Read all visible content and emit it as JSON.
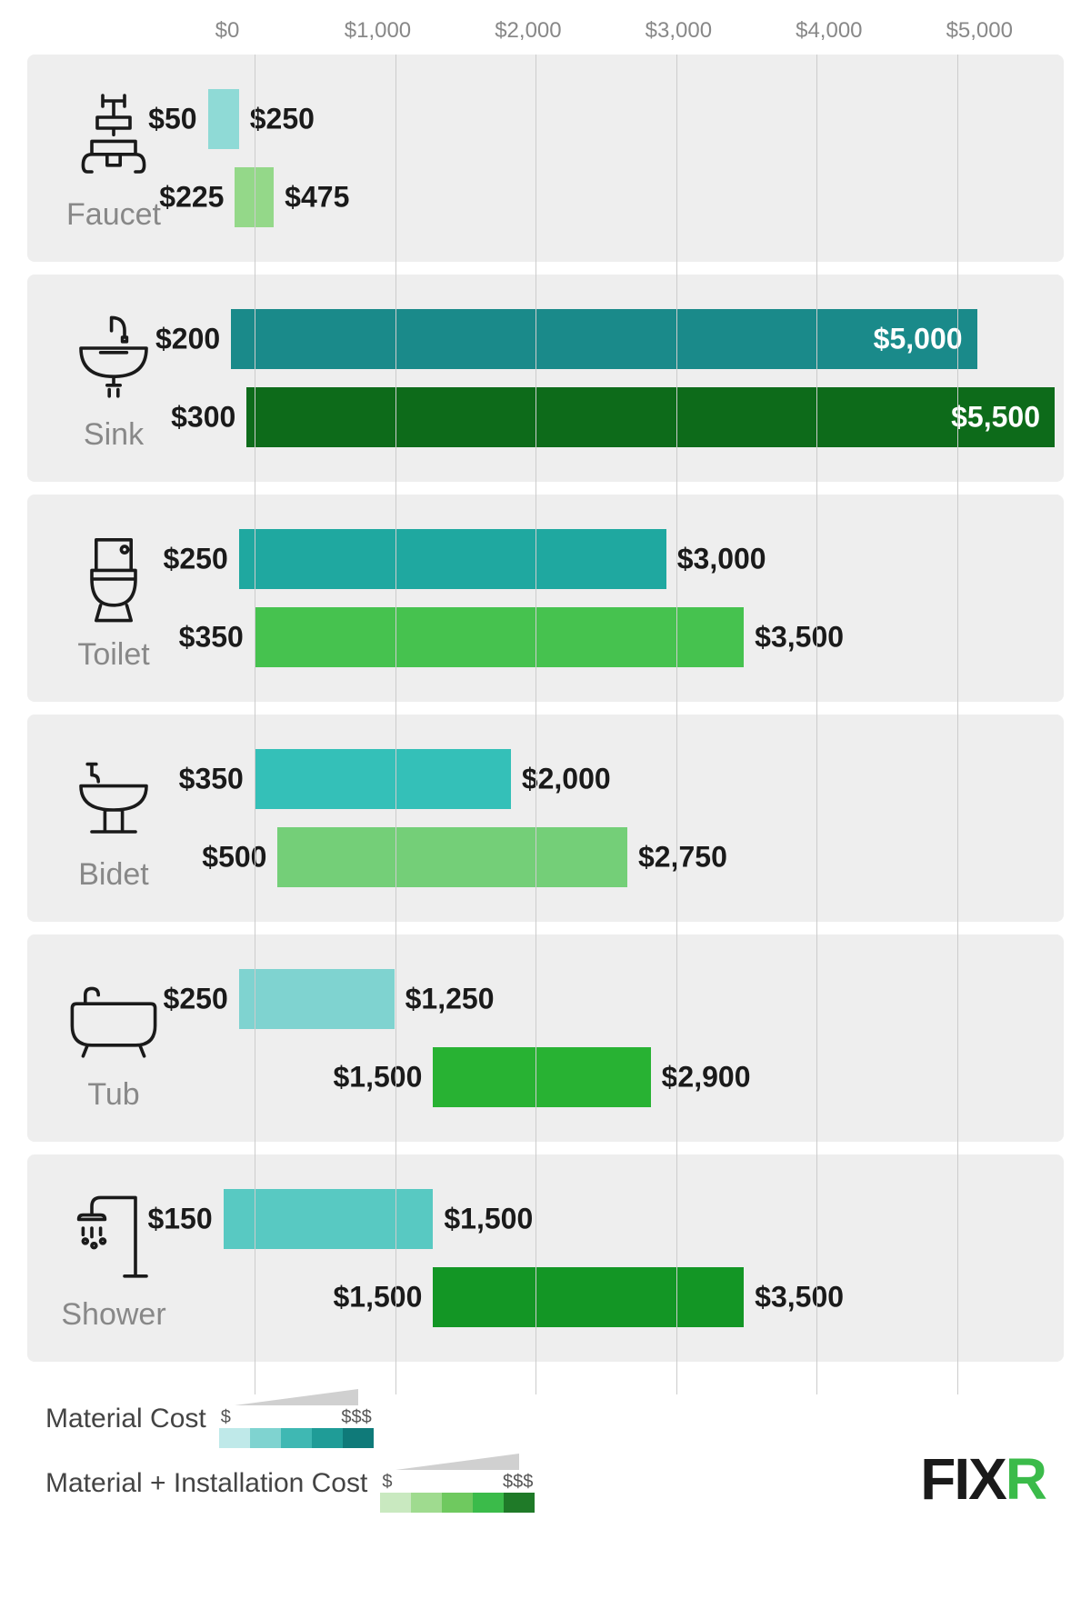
{
  "axis": {
    "min": 0,
    "max": 5500,
    "ticks": [
      0,
      1000,
      2000,
      3000,
      4000,
      5000
    ],
    "tick_labels": [
      "$0",
      "$1,000",
      "$2,000",
      "$3,000",
      "$4,000",
      "$5,000"
    ],
    "label_color": "#888888",
    "gridline_color": "#cccccc"
  },
  "colors": {
    "material_scale": [
      "#bfe9e9",
      "#7fd3d0",
      "#3fb8b3",
      "#1f9c97",
      "#0f7a79"
    ],
    "install_scale": [
      "#c9e9c0",
      "#9fdb8f",
      "#6fc95f",
      "#3bbb4a",
      "#1f7a28"
    ],
    "category_bg": "#eeeeee",
    "page_bg": "#ffffff",
    "text_dark": "#1a1a1a",
    "text_muted": "#888888"
  },
  "categories": [
    {
      "key": "faucet",
      "label": "Faucet",
      "icon": "faucet",
      "material": {
        "low": 50,
        "high": 250,
        "low_label": "$50",
        "high_label": "$250",
        "color": "#8fdad6",
        "high_inside": false
      },
      "install": {
        "low": 225,
        "high": 475,
        "low_label": "$225",
        "high_label": "$475",
        "color": "#94d889",
        "high_inside": false
      }
    },
    {
      "key": "sink",
      "label": "Sink",
      "icon": "sink",
      "material": {
        "low": 200,
        "high": 5000,
        "low_label": "$200",
        "high_label": "$5,000",
        "color": "#1a8a8a",
        "high_inside": true
      },
      "install": {
        "low": 300,
        "high": 5500,
        "low_label": "$300",
        "high_label": "$5,500",
        "color": "#0d6b1a",
        "high_inside": true
      }
    },
    {
      "key": "toilet",
      "label": "Toilet",
      "icon": "toilet",
      "material": {
        "low": 250,
        "high": 3000,
        "low_label": "$250",
        "high_label": "$3,000",
        "color": "#1fa8a0",
        "high_inside": false
      },
      "install": {
        "low": 350,
        "high": 3500,
        "low_label": "$350",
        "high_label": "$3,500",
        "color": "#46c24f",
        "high_inside": false
      }
    },
    {
      "key": "bidet",
      "label": "Bidet",
      "icon": "bidet",
      "material": {
        "low": 350,
        "high": 2000,
        "low_label": "$350",
        "high_label": "$2,000",
        "color": "#34c0b8",
        "high_inside": false
      },
      "install": {
        "low": 500,
        "high": 2750,
        "low_label": "$500",
        "high_label": "$2,750",
        "color": "#74cf78",
        "high_inside": false
      }
    },
    {
      "key": "tub",
      "label": "Tub",
      "icon": "tub",
      "material": {
        "low": 250,
        "high": 1250,
        "low_label": "$250",
        "high_label": "$1,250",
        "color": "#7fd3d0",
        "high_inside": false
      },
      "install": {
        "low": 1500,
        "high": 2900,
        "low_label": "$1,500",
        "high_label": "$2,900",
        "color": "#28b233",
        "high_inside": false
      }
    },
    {
      "key": "shower",
      "label": "Shower",
      "icon": "shower",
      "material": {
        "low": 150,
        "high": 1500,
        "low_label": "$150",
        "high_label": "$1,500",
        "color": "#58c9c2",
        "high_inside": false
      },
      "install": {
        "low": 1500,
        "high": 3500,
        "low_label": "$1,500",
        "high_label": "$3,500",
        "color": "#139625",
        "high_inside": false
      }
    }
  ],
  "legend": {
    "material_label": "Material Cost",
    "install_label": "Material + Installation Cost",
    "low_symbol": "$",
    "high_symbol": "$$$"
  },
  "brand": {
    "text": "FIX",
    "accent": "R"
  }
}
